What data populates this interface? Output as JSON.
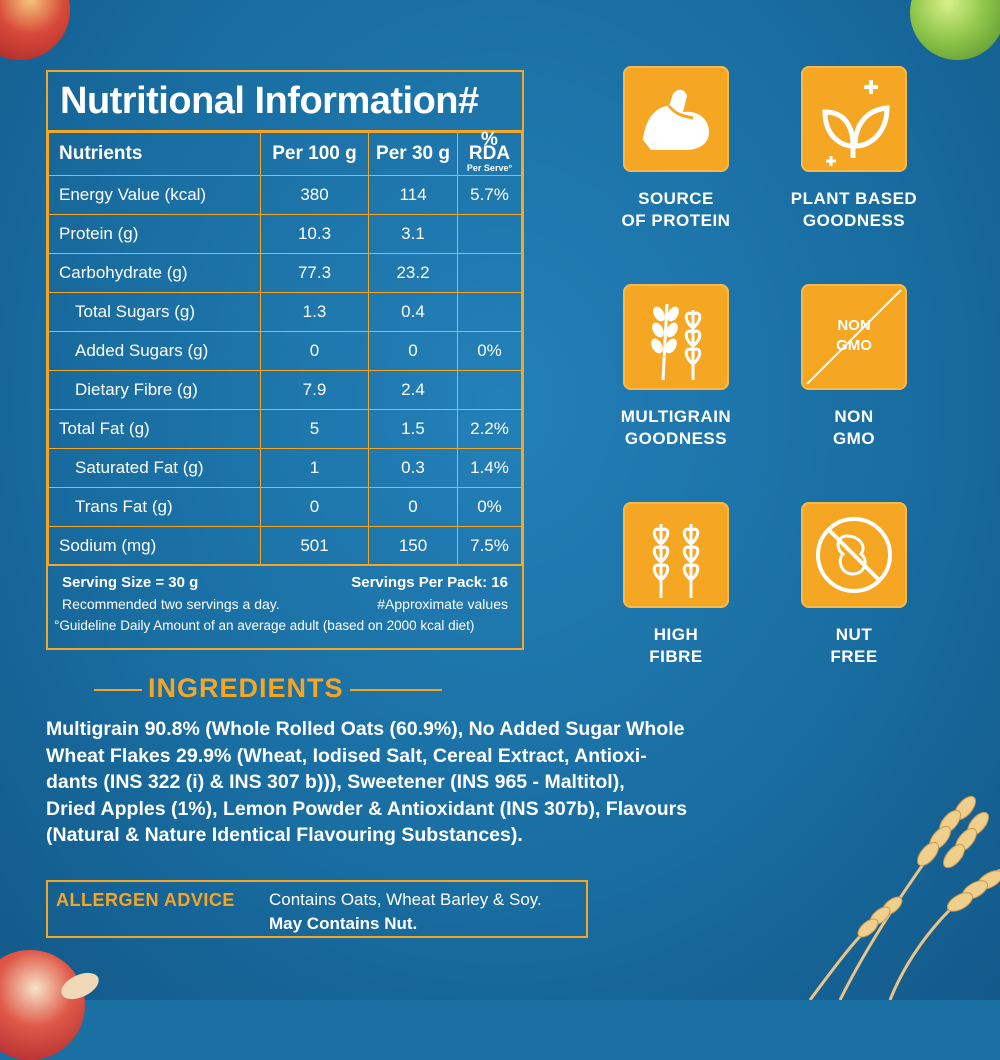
{
  "nutrition": {
    "title": "Nutritional Information#",
    "headers": [
      "Nutrients",
      "Per 100 g",
      "Per 30 g",
      "% RDA",
      "Per Serve°"
    ],
    "rows": [
      {
        "name": "Energy Value (kcal)",
        "per100": "380",
        "per30": "114",
        "rda": "5.7%"
      },
      {
        "name": "Protein (g)",
        "per100": "10.3",
        "per30": "3.1",
        "rda": ""
      },
      {
        "name": "Carbohydrate (g)",
        "per100": "77.3",
        "per30": "23.2",
        "rda": ""
      },
      {
        "name": "Total Sugars (g)",
        "per100": "1.3",
        "per30": "0.4",
        "rda": ""
      },
      {
        "name": "Added Sugars (g)",
        "per100": "0",
        "per30": "0",
        "rda": "0%"
      },
      {
        "name": "Dietary Fibre (g)",
        "per100": "7.9",
        "per30": "2.4",
        "rda": ""
      },
      {
        "name": "Total Fat (g)",
        "per100": "5",
        "per30": "1.5",
        "rda": "2.2%"
      },
      {
        "name": "Saturated Fat (g)",
        "per100": "1",
        "per30": "0.3",
        "rda": "1.4%"
      },
      {
        "name": "Trans Fat (g)",
        "per100": "0",
        "per30": "0",
        "rda": "0%"
      },
      {
        "name": "Sodium (mg)",
        "per100": "501",
        "per30": "150",
        "rda": "7.5%"
      }
    ],
    "serving_size": "Serving Size = 30 g",
    "servings_per_pack": "Servings Per Pack: 16",
    "recommendation": "Recommended two servings a day.",
    "approx_note": "#Approximate values",
    "guideline_note": "°Guideline Daily Amount of an average adult (based on 2000 kcal diet)"
  },
  "features": [
    {
      "icon": "flexed-arm-icon",
      "line1": "SOURCE",
      "line2": "OF PROTEIN"
    },
    {
      "icon": "plant-leaves-icon",
      "line1": "PLANT BASED",
      "line2": "GOODNESS"
    },
    {
      "icon": "multigrain-icon",
      "line1": "MULTIGRAIN",
      "line2": "GOODNESS"
    },
    {
      "icon": "non-gmo-icon",
      "badge1": "NON",
      "badge2": "GMO",
      "line1": "NON",
      "line2": "GMO"
    },
    {
      "icon": "wheat-icon",
      "line1": "HIGH",
      "line2": "FIBRE"
    },
    {
      "icon": "no-nut-icon",
      "line1": "NUT",
      "line2": "FREE"
    }
  ],
  "ingredients": {
    "title": "INGREDIENTS",
    "lines": [
      "Multigrain 90.8% (Whole Rolled Oats (60.9%), No Added Sugar Whole",
      "Wheat Flakes 29.9% (Wheat, Iodised Salt, Cereal Extract, Antioxi-",
      "dants (INS 322 (i) & INS 307 b))), Sweetener (INS 965 - Maltitol),",
      "Dried Apples (1%), Lemon Powder & Antioxidant (INS 307b), Flavours",
      "(Natural & Nature Identical Flavouring Substances)."
    ]
  },
  "allergen": {
    "title": "ALLERGEN ADVICE",
    "line1": "Contains Oats, Wheat Barley & Soy.",
    "line2": "May Contains Nut."
  },
  "colors": {
    "background": "#1a6fa3",
    "accent": "#f6a623",
    "text": "#ffffff"
  }
}
